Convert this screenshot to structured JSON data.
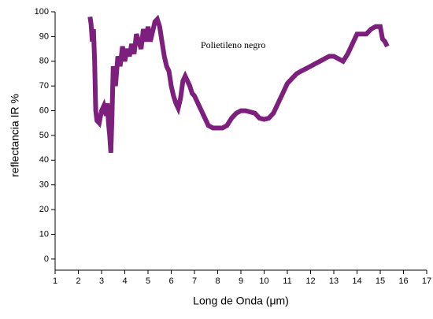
{
  "chart_data": {
    "type": "line",
    "annotation": "Polietileno negro",
    "xlabel": "Long de Onda (μm)",
    "ylabel": "reflectancia IR %",
    "x": [
      2.5,
      2.55,
      2.6,
      2.65,
      2.7,
      2.75,
      2.8,
      2.9,
      3.0,
      3.1,
      3.2,
      3.25,
      3.3,
      3.35,
      3.4,
      3.45,
      3.5,
      3.6,
      3.7,
      3.8,
      3.9,
      4.0,
      4.1,
      4.2,
      4.3,
      4.4,
      4.5,
      4.6,
      4.7,
      4.8,
      4.9,
      5.0,
      5.1,
      5.2,
      5.3,
      5.4,
      5.5,
      5.6,
      5.7,
      5.8,
      5.9,
      6.0,
      6.1,
      6.2,
      6.3,
      6.4,
      6.5,
      6.6,
      6.7,
      6.8,
      6.9,
      7.0,
      7.2,
      7.4,
      7.6,
      7.8,
      8.0,
      8.2,
      8.4,
      8.6,
      8.8,
      9.0,
      9.2,
      9.4,
      9.6,
      9.8,
      10.0,
      10.2,
      10.4,
      10.6,
      10.8,
      11.0,
      11.2,
      11.4,
      11.6,
      11.8,
      12.0,
      12.2,
      12.4,
      12.6,
      12.8,
      13.0,
      13.2,
      13.4,
      13.6,
      13.8,
      14.0,
      14.2,
      14.4,
      14.6,
      14.8,
      15.0,
      15.1,
      15.2,
      15.3
    ],
    "series": [
      {
        "color": "#7d1f7d",
        "values": [
          98,
          95,
          88,
          93,
          80,
          60,
          56,
          55,
          60,
          62,
          58,
          63,
          55,
          50,
          43,
          58,
          78,
          70,
          82,
          78,
          86,
          80,
          85,
          82,
          87,
          83,
          91,
          88,
          85,
          93,
          88,
          94,
          88,
          92,
          96,
          97,
          94,
          88,
          82,
          78,
          76,
          70,
          66,
          63,
          61,
          65,
          72,
          74,
          72,
          70,
          67,
          66,
          62,
          58,
          54,
          53,
          53,
          53,
          54,
          57,
          59,
          60,
          60,
          59.5,
          59,
          57,
          56.5,
          57,
          59,
          63,
          67,
          71,
          73,
          75,
          76,
          77,
          78,
          79,
          80,
          81,
          82,
          82,
          81,
          80,
          83,
          87,
          91,
          91,
          91,
          93,
          94,
          94,
          89,
          88,
          86
        ]
      }
    ],
    "xlim": [
      1,
      17
    ],
    "xticks": [
      1,
      2,
      3,
      4,
      5,
      6,
      7,
      8,
      9,
      10,
      11,
      12,
      13,
      14,
      15,
      16,
      17
    ],
    "ylim": [
      -4.5,
      100
    ],
    "yticks": [
      0,
      10,
      20,
      30,
      40,
      50,
      60,
      70,
      80,
      90,
      100
    ]
  }
}
